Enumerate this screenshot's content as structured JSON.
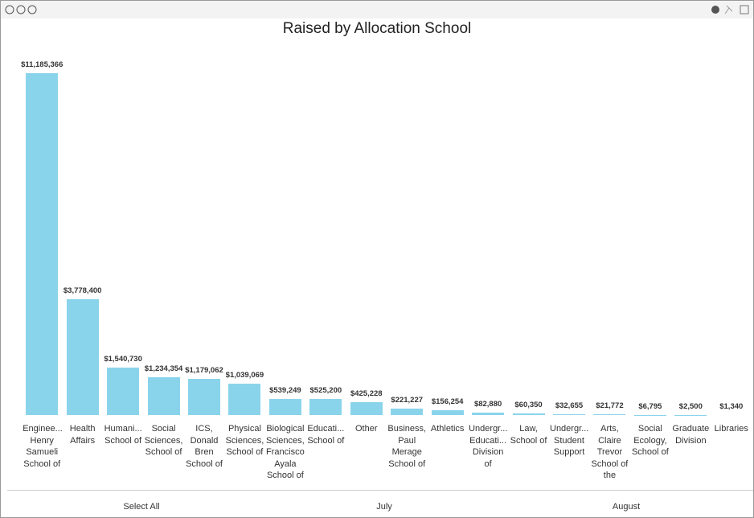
{
  "chart_data": {
    "type": "bar",
    "title": "Raised by Allocation School",
    "categories": [
      "Enginee... Henry Samueli School of",
      "Health Affairs",
      "Humani... School of",
      "Social Sciences, School of",
      "ICS, Donald Bren School of",
      "Physical Sciences, School of",
      "Biological Sciences, Francisco Ayala School of",
      "Educati... School of",
      "Other",
      "Business, Paul Merage School of",
      "Athletics",
      "Undergr... Educati... Division of",
      "Law, School of",
      "Undergr... Student Support",
      "Arts, Claire Trevor School of the",
      "Social Ecology, School of",
      "Graduate Division",
      "Libraries"
    ],
    "values": [
      11185366,
      3778400,
      1540730,
      1234354,
      1179062,
      1039069,
      539249,
      525200,
      425228,
      221227,
      156254,
      82880,
      60350,
      32655,
      21772,
      6795,
      2500,
      1340
    ],
    "value_labels": [
      "$11,185,366",
      "$3,778,400",
      "$1,540,730",
      "$1,234,354",
      "$1,179,062",
      "$1,039,069",
      "$539,249",
      "$525,200",
      "$425,228",
      "$221,227",
      "$156,254",
      "$82,880",
      "$60,350",
      "$32,655",
      "$21,772",
      "$6,795",
      "$2,500",
      "$1,340"
    ],
    "color": "#8ad4eb"
  },
  "slicer": {
    "items": [
      "Select All",
      "July",
      "August"
    ]
  }
}
